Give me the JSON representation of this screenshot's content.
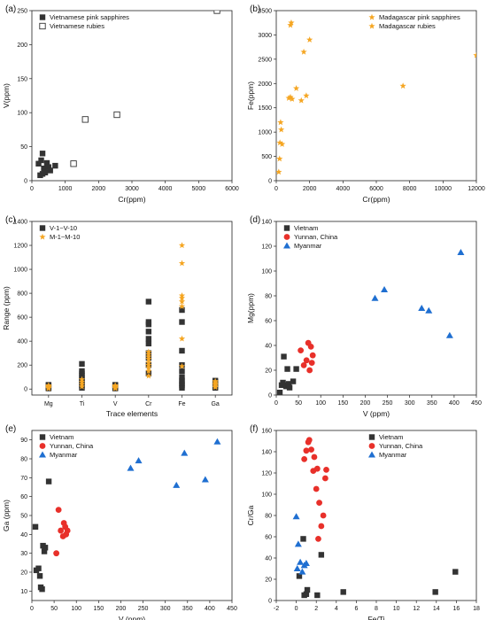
{
  "colors": {
    "dark": "#333333",
    "orange": "#f5a623",
    "red": "#e8302a",
    "blue": "#1f6fd1"
  },
  "chart_data": [
    {
      "panel_label": "(a)",
      "type": "scatter",
      "xlabel": "Cr(ppm)",
      "ylabel": "V(ppm)",
      "xlim": [
        0,
        6000
      ],
      "ylim": [
        0,
        250
      ],
      "xticks": [
        0,
        1000,
        2000,
        3000,
        4000,
        5000,
        6000
      ],
      "yticks": [
        0,
        50,
        100,
        150,
        200,
        250
      ],
      "legend_position": "top-left",
      "series": [
        {
          "name": "Vietnamese pink sapphires",
          "marker": "square",
          "color": "#333333",
          "points": [
            [
              200,
              25
            ],
            [
              250,
              8
            ],
            [
              280,
              30
            ],
            [
              320,
              40
            ],
            [
              360,
              18
            ],
            [
              400,
              12
            ],
            [
              450,
              26
            ],
            [
              500,
              20
            ],
            [
              550,
              15
            ],
            [
              700,
              22
            ],
            [
              320,
              10
            ]
          ]
        },
        {
          "name": "Vietnamese rubies",
          "marker": "square-open",
          "color": "#333333",
          "points": [
            [
              1250,
              25
            ],
            [
              1600,
              90
            ],
            [
              2550,
              97
            ],
            [
              5550,
              250
            ]
          ]
        }
      ]
    },
    {
      "panel_label": "(b)",
      "type": "scatter",
      "xlabel": "Cr(ppm)",
      "ylabel": "Fe(ppm)",
      "xlim": [
        0,
        12000
      ],
      "ylim": [
        0,
        3500
      ],
      "xticks": [
        0,
        2000,
        4000,
        6000,
        8000,
        10000,
        12000
      ],
      "yticks": [
        0,
        500,
        1000,
        1500,
        2000,
        2500,
        3000,
        3500
      ],
      "legend_position": "top-right",
      "series": [
        {
          "name": "Madagascar pink sapphires",
          "marker": "star",
          "color": "#f5a623",
          "points": [
            [
              150,
              180
            ],
            [
              200,
              450
            ],
            [
              220,
              780
            ],
            [
              260,
              1200
            ],
            [
              300,
              1050
            ],
            [
              350,
              750
            ]
          ]
        },
        {
          "name": "Madagascar rubies",
          "marker": "star",
          "color": "#f5a623",
          "points": [
            [
              750,
              1700
            ],
            [
              850,
              1720
            ],
            [
              950,
              1680
            ],
            [
              1200,
              1900
            ],
            [
              1500,
              1650
            ],
            [
              1650,
              2650
            ],
            [
              1800,
              1750
            ],
            [
              2000,
              2900
            ],
            [
              850,
              3200
            ],
            [
              900,
              3250
            ],
            [
              7600,
              1950
            ],
            [
              12000,
              2580
            ]
          ]
        }
      ]
    },
    {
      "panel_label": "(c)",
      "type": "scatter",
      "xlabel": "Trace elements",
      "ylabel": "Range (ppm)",
      "categories": [
        "Mg",
        "Ti",
        "V",
        "Cr",
        "Fe",
        "Ga"
      ],
      "ylim": [
        -50,
        1400
      ],
      "yticks": [
        0,
        200,
        400,
        600,
        800,
        1000,
        1200,
        1400
      ],
      "legend_position": "top-left",
      "series": [
        {
          "name": "V-1~V-10",
          "marker": "square",
          "color": "#333333",
          "values": {
            "Mg": [
              5,
              10,
              15,
              20,
              25,
              30,
              35
            ],
            "Ti": [
              10,
              30,
              50,
              70,
              90,
              110,
              130,
              150,
              210
            ],
            "V": [
              5,
              10,
              15,
              20,
              25,
              30,
              35
            ],
            "Cr": [
              130,
              200,
              260,
              300,
              380,
              420,
              480,
              540,
              560,
              730
            ],
            "Fe": [
              10,
              30,
              50,
              70,
              100,
              150,
              200,
              320,
              560,
              660
            ],
            "Ga": [
              10,
              20,
              30,
              40,
              50,
              60,
              70
            ]
          }
        },
        {
          "name": "M-1~M-10",
          "marker": "star",
          "color": "#f5a623",
          "values": {
            "Mg": [
              5,
              10,
              15,
              20,
              25,
              30
            ],
            "Ti": [
              20,
              40,
              60,
              80
            ],
            "V": [
              5,
              10,
              15,
              20,
              25,
              30
            ],
            "Cr": [
              110,
              150,
              180,
              200,
              220,
              250,
              270,
              290,
              310
            ],
            "Fe": [
              190,
              420,
              690,
              730,
              760,
              780,
              1050,
              1200
            ],
            "Ga": [
              15,
              25,
              35,
              45,
              55,
              65
            ]
          }
        }
      ]
    },
    {
      "panel_label": "(d)",
      "type": "scatter",
      "xlabel": "V (ppm)",
      "ylabel": "Mg(ppm)",
      "xlim": [
        0,
        450
      ],
      "ylim": [
        0,
        140
      ],
      "xticks": [
        0,
        50,
        100,
        150,
        200,
        250,
        300,
        350,
        400,
        450
      ],
      "yticks": [
        0,
        20,
        40,
        60,
        80,
        100,
        120,
        140
      ],
      "legend_position": "top-left",
      "series": [
        {
          "name": "Vietnam",
          "marker": "square",
          "color": "#333333",
          "points": [
            [
              8,
              2
            ],
            [
              12,
              8
            ],
            [
              15,
              10
            ],
            [
              17,
              31
            ],
            [
              20,
              8
            ],
            [
              22,
              7
            ],
            [
              25,
              21
            ],
            [
              28,
              9
            ],
            [
              30,
              6
            ],
            [
              38,
              11
            ],
            [
              45,
              21
            ]
          ]
        },
        {
          "name": "Yunnan, China",
          "marker": "circle",
          "color": "#e8302a",
          "points": [
            [
              55,
              36
            ],
            [
              62,
              24
            ],
            [
              68,
              28
            ],
            [
              72,
              42
            ],
            [
              75,
              20
            ],
            [
              78,
              39
            ],
            [
              80,
              26
            ],
            [
              82,
              32
            ]
          ]
        },
        {
          "name": "Myanmar",
          "marker": "triangle",
          "color": "#1f6fd1",
          "points": [
            [
              222,
              78
            ],
            [
              243,
              85
            ],
            [
              327,
              70
            ],
            [
              343,
              68
            ],
            [
              390,
              48
            ],
            [
              415,
              115
            ]
          ]
        }
      ]
    },
    {
      "panel_label": "(e)",
      "type": "scatter",
      "xlabel": "V (ppm)",
      "ylabel": "Ga (ppm)",
      "xlim": [
        0,
        450
      ],
      "ylim": [
        5,
        95
      ],
      "xticks": [
        0,
        50,
        100,
        150,
        200,
        250,
        300,
        350,
        400,
        450
      ],
      "yticks": [
        10,
        20,
        30,
        40,
        50,
        60,
        70,
        80,
        90
      ],
      "legend_position": "top-left",
      "series": [
        {
          "name": "Vietnam",
          "marker": "square",
          "color": "#333333",
          "points": [
            [
              8,
              44
            ],
            [
              10,
              21
            ],
            [
              15,
              22
            ],
            [
              18,
              18
            ],
            [
              20,
              12
            ],
            [
              23,
              11
            ],
            [
              25,
              34
            ],
            [
              28,
              31
            ],
            [
              30,
              33
            ],
            [
              38,
              68
            ]
          ]
        },
        {
          "name": "Yunnan, China",
          "marker": "circle",
          "color": "#e8302a",
          "points": [
            [
              55,
              30
            ],
            [
              60,
              53
            ],
            [
              65,
              42
            ],
            [
              70,
              39
            ],
            [
              72,
              46
            ],
            [
              75,
              44
            ],
            [
              77,
              40
            ],
            [
              80,
              42
            ]
          ]
        },
        {
          "name": "Myanmar",
          "marker": "triangle",
          "color": "#1f6fd1",
          "points": [
            [
              222,
              75
            ],
            [
              240,
              79
            ],
            [
              325,
              66
            ],
            [
              343,
              83
            ],
            [
              390,
              69
            ],
            [
              417,
              89
            ]
          ]
        }
      ]
    },
    {
      "panel_label": "(f)",
      "type": "scatter",
      "xlabel": "Fe/Ti",
      "ylabel": "Cr/Ga",
      "xlim": [
        -2,
        18
      ],
      "ylim": [
        0,
        160
      ],
      "xticks": [
        -2,
        0,
        2,
        4,
        6,
        8,
        10,
        12,
        14,
        16,
        18
      ],
      "yticks": [
        0,
        20,
        40,
        60,
        80,
        100,
        120,
        140,
        160
      ],
      "legend_position": "top-right",
      "series": [
        {
          "name": "Vietnam",
          "marker": "square",
          "color": "#333333",
          "points": [
            [
              0.3,
              23
            ],
            [
              0.7,
              58
            ],
            [
              0.8,
              5
            ],
            [
              1.0,
              6
            ],
            [
              1.1,
              10
            ],
            [
              2.1,
              5
            ],
            [
              2.5,
              43
            ],
            [
              4.7,
              8
            ],
            [
              13.9,
              8
            ],
            [
              15.9,
              27
            ]
          ]
        },
        {
          "name": "Yunnan, China",
          "marker": "circle",
          "color": "#e8302a",
          "points": [
            [
              0.8,
              133
            ],
            [
              1.0,
              141
            ],
            [
              1.2,
              149
            ],
            [
              1.3,
              151
            ],
            [
              1.5,
              142
            ],
            [
              1.7,
              122
            ],
            [
              1.8,
              135
            ],
            [
              2.0,
              105
            ],
            [
              2.1,
              124
            ],
            [
              2.3,
              92
            ],
            [
              2.5,
              70
            ],
            [
              2.7,
              80
            ],
            [
              2.9,
              115
            ],
            [
              3.0,
              123
            ],
            [
              2.2,
              58
            ]
          ]
        },
        {
          "name": "Myanmar",
          "marker": "triangle",
          "color": "#1f6fd1",
          "points": [
            [
              0.0,
              79
            ],
            [
              0.1,
              30
            ],
            [
              0.2,
              53
            ],
            [
              0.4,
              36
            ],
            [
              0.6,
              27
            ],
            [
              0.8,
              33
            ],
            [
              1.0,
              35
            ]
          ]
        }
      ]
    }
  ]
}
